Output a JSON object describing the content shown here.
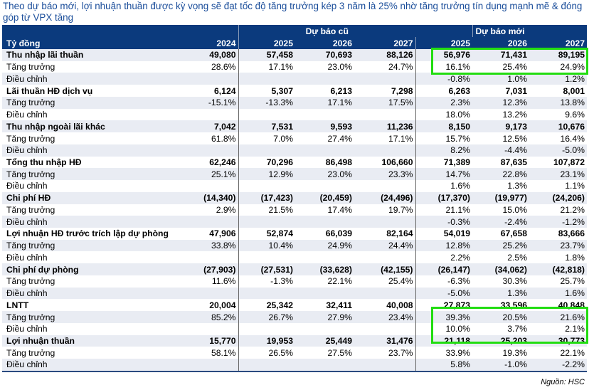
{
  "title": "Theo dự báo mới, lợi nhuận thuần được kỳ vọng sẽ đạt tốc độ tăng trưởng kép 3 năm là 25% nhờ tăng trưởng tín dụng mạnh mẽ & đóng góp từ VPX tăng",
  "header": {
    "unit": "Tỷ đồng",
    "group_old": "Dự báo cũ",
    "group_new": "Dự báo mới",
    "years": [
      "2024",
      "2025",
      "2026",
      "2027",
      "2025",
      "2026",
      "2027"
    ]
  },
  "rows": [
    {
      "label": "Thu nhập lãi thuần",
      "bold": true,
      "v": [
        "49,080",
        "57,458",
        "70,693",
        "88,126",
        "56,976",
        "71,431",
        "89,195"
      ]
    },
    {
      "label": "Tăng trưởng",
      "v": [
        "28.6%",
        "17.1%",
        "23.0%",
        "24.7%",
        "16.1%",
        "25.4%",
        "24.9%"
      ]
    },
    {
      "label": "Điều chỉnh",
      "v": [
        "",
        "",
        "",
        "",
        "-0.8%",
        "1.0%",
        "1.2%"
      ]
    },
    {
      "label": "Lãi thuần HĐ dịch vụ",
      "bold": true,
      "v": [
        "6,124",
        "5,307",
        "6,213",
        "7,298",
        "6,263",
        "7,031",
        "8,001"
      ]
    },
    {
      "label": "Tăng trưởng",
      "v": [
        "-15.1%",
        "-13.3%",
        "17.1%",
        "17.5%",
        "2.3%",
        "12.3%",
        "13.8%"
      ]
    },
    {
      "label": "Điều chỉnh",
      "v": [
        "",
        "",
        "",
        "",
        "18.0%",
        "13.2%",
        "9.6%"
      ]
    },
    {
      "label": "Thu nhập ngoài lãi khác",
      "bold": true,
      "v": [
        "7,042",
        "7,531",
        "9,593",
        "11,236",
        "8,150",
        "9,173",
        "10,676"
      ]
    },
    {
      "label": "Tăng trưởng",
      "v": [
        "61.8%",
        "7.0%",
        "27.4%",
        "17.1%",
        "15.7%",
        "12.5%",
        "16.4%"
      ]
    },
    {
      "label": "Điều chỉnh",
      "v": [
        "",
        "",
        "",
        "",
        "8.2%",
        "-4.4%",
        "-5.0%"
      ]
    },
    {
      "label": "Tổng thu nhập HĐ",
      "bold": true,
      "v": [
        "62,246",
        "70,296",
        "86,498",
        "106,660",
        "71,389",
        "87,635",
        "107,872"
      ]
    },
    {
      "label": "Tăng trưởng",
      "v": [
        "25.1%",
        "12.9%",
        "23.0%",
        "23.3%",
        "14.7%",
        "22.8%",
        "23.1%"
      ]
    },
    {
      "label": "Điều chỉnh",
      "v": [
        "",
        "",
        "",
        "",
        "1.6%",
        "1.3%",
        "1.1%"
      ]
    },
    {
      "label": "Chi phí HĐ",
      "bold": true,
      "v": [
        "(14,340)",
        "(17,423)",
        "(20,459)",
        "(24,496)",
        "(17,370)",
        "(19,977)",
        "(24,206)"
      ]
    },
    {
      "label": "Tăng trưởng",
      "v": [
        "2.9%",
        "21.5%",
        "17.4%",
        "19.7%",
        "21.1%",
        "15.0%",
        "21.2%"
      ]
    },
    {
      "label": "Điều chỉnh",
      "v": [
        "",
        "",
        "",
        "",
        "-0.3%",
        "-2.4%",
        "-1.2%"
      ]
    },
    {
      "label": "Lợi nhuận HĐ trước trích lập dự phòng",
      "bold": true,
      "v": [
        "47,906",
        "52,874",
        "66,039",
        "82,164",
        "54,019",
        "67,658",
        "83,666"
      ]
    },
    {
      "label": "Tăng trưởng",
      "v": [
        "33.8%",
        "10.4%",
        "24.9%",
        "24.4%",
        "12.8%",
        "25.2%",
        "23.7%"
      ]
    },
    {
      "label": "Điều chỉnh",
      "v": [
        "",
        "",
        "",
        "",
        "2.2%",
        "2.5%",
        "1.8%"
      ]
    },
    {
      "label": "Chi phí dự phòng",
      "bold": true,
      "v": [
        "(27,903)",
        "(27,531)",
        "(33,628)",
        "(42,155)",
        "(26,147)",
        "(34,062)",
        "(42,818)"
      ]
    },
    {
      "label": "Tăng trưởng",
      "v": [
        "11.6%",
        "-1.3%",
        "22.1%",
        "25.4%",
        "-6.3%",
        "30.3%",
        "25.7%"
      ]
    },
    {
      "label": "Điều chỉnh",
      "v": [
        "",
        "",
        "",
        "",
        "-5.0%",
        "1.3%",
        "1.6%"
      ]
    },
    {
      "label": "LNTT",
      "bold": true,
      "v": [
        "20,004",
        "25,342",
        "32,411",
        "40,008",
        "27,873",
        "33,596",
        "40,848"
      ]
    },
    {
      "label": "Tăng trưởng",
      "v": [
        "85.2%",
        "26.7%",
        "27.9%",
        "23.4%",
        "39.3%",
        "20.5%",
        "21.6%"
      ]
    },
    {
      "label": "Điều chỉnh",
      "v": [
        "",
        "",
        "",
        "",
        "10.0%",
        "3.7%",
        "2.1%"
      ]
    },
    {
      "label": "Lợi nhuận thuần",
      "bold": true,
      "v": [
        "15,770",
        "19,953",
        "25,449",
        "31,476",
        "21,118",
        "25,203",
        "30,773"
      ]
    },
    {
      "label": "Tăng trưởng",
      "v": [
        "58.1%",
        "26.5%",
        "27.5%",
        "23.7%",
        "33.9%",
        "19.3%",
        "22.1%"
      ]
    },
    {
      "label": "Điều chỉnh",
      "v": [
        "",
        "",
        "",
        "",
        "5.8%",
        "-1.0%",
        "-2.2%"
      ]
    }
  ],
  "highlight_color": "#22dd11",
  "header_color": "#0b3a7d",
  "source": "Nguồn: HSC"
}
